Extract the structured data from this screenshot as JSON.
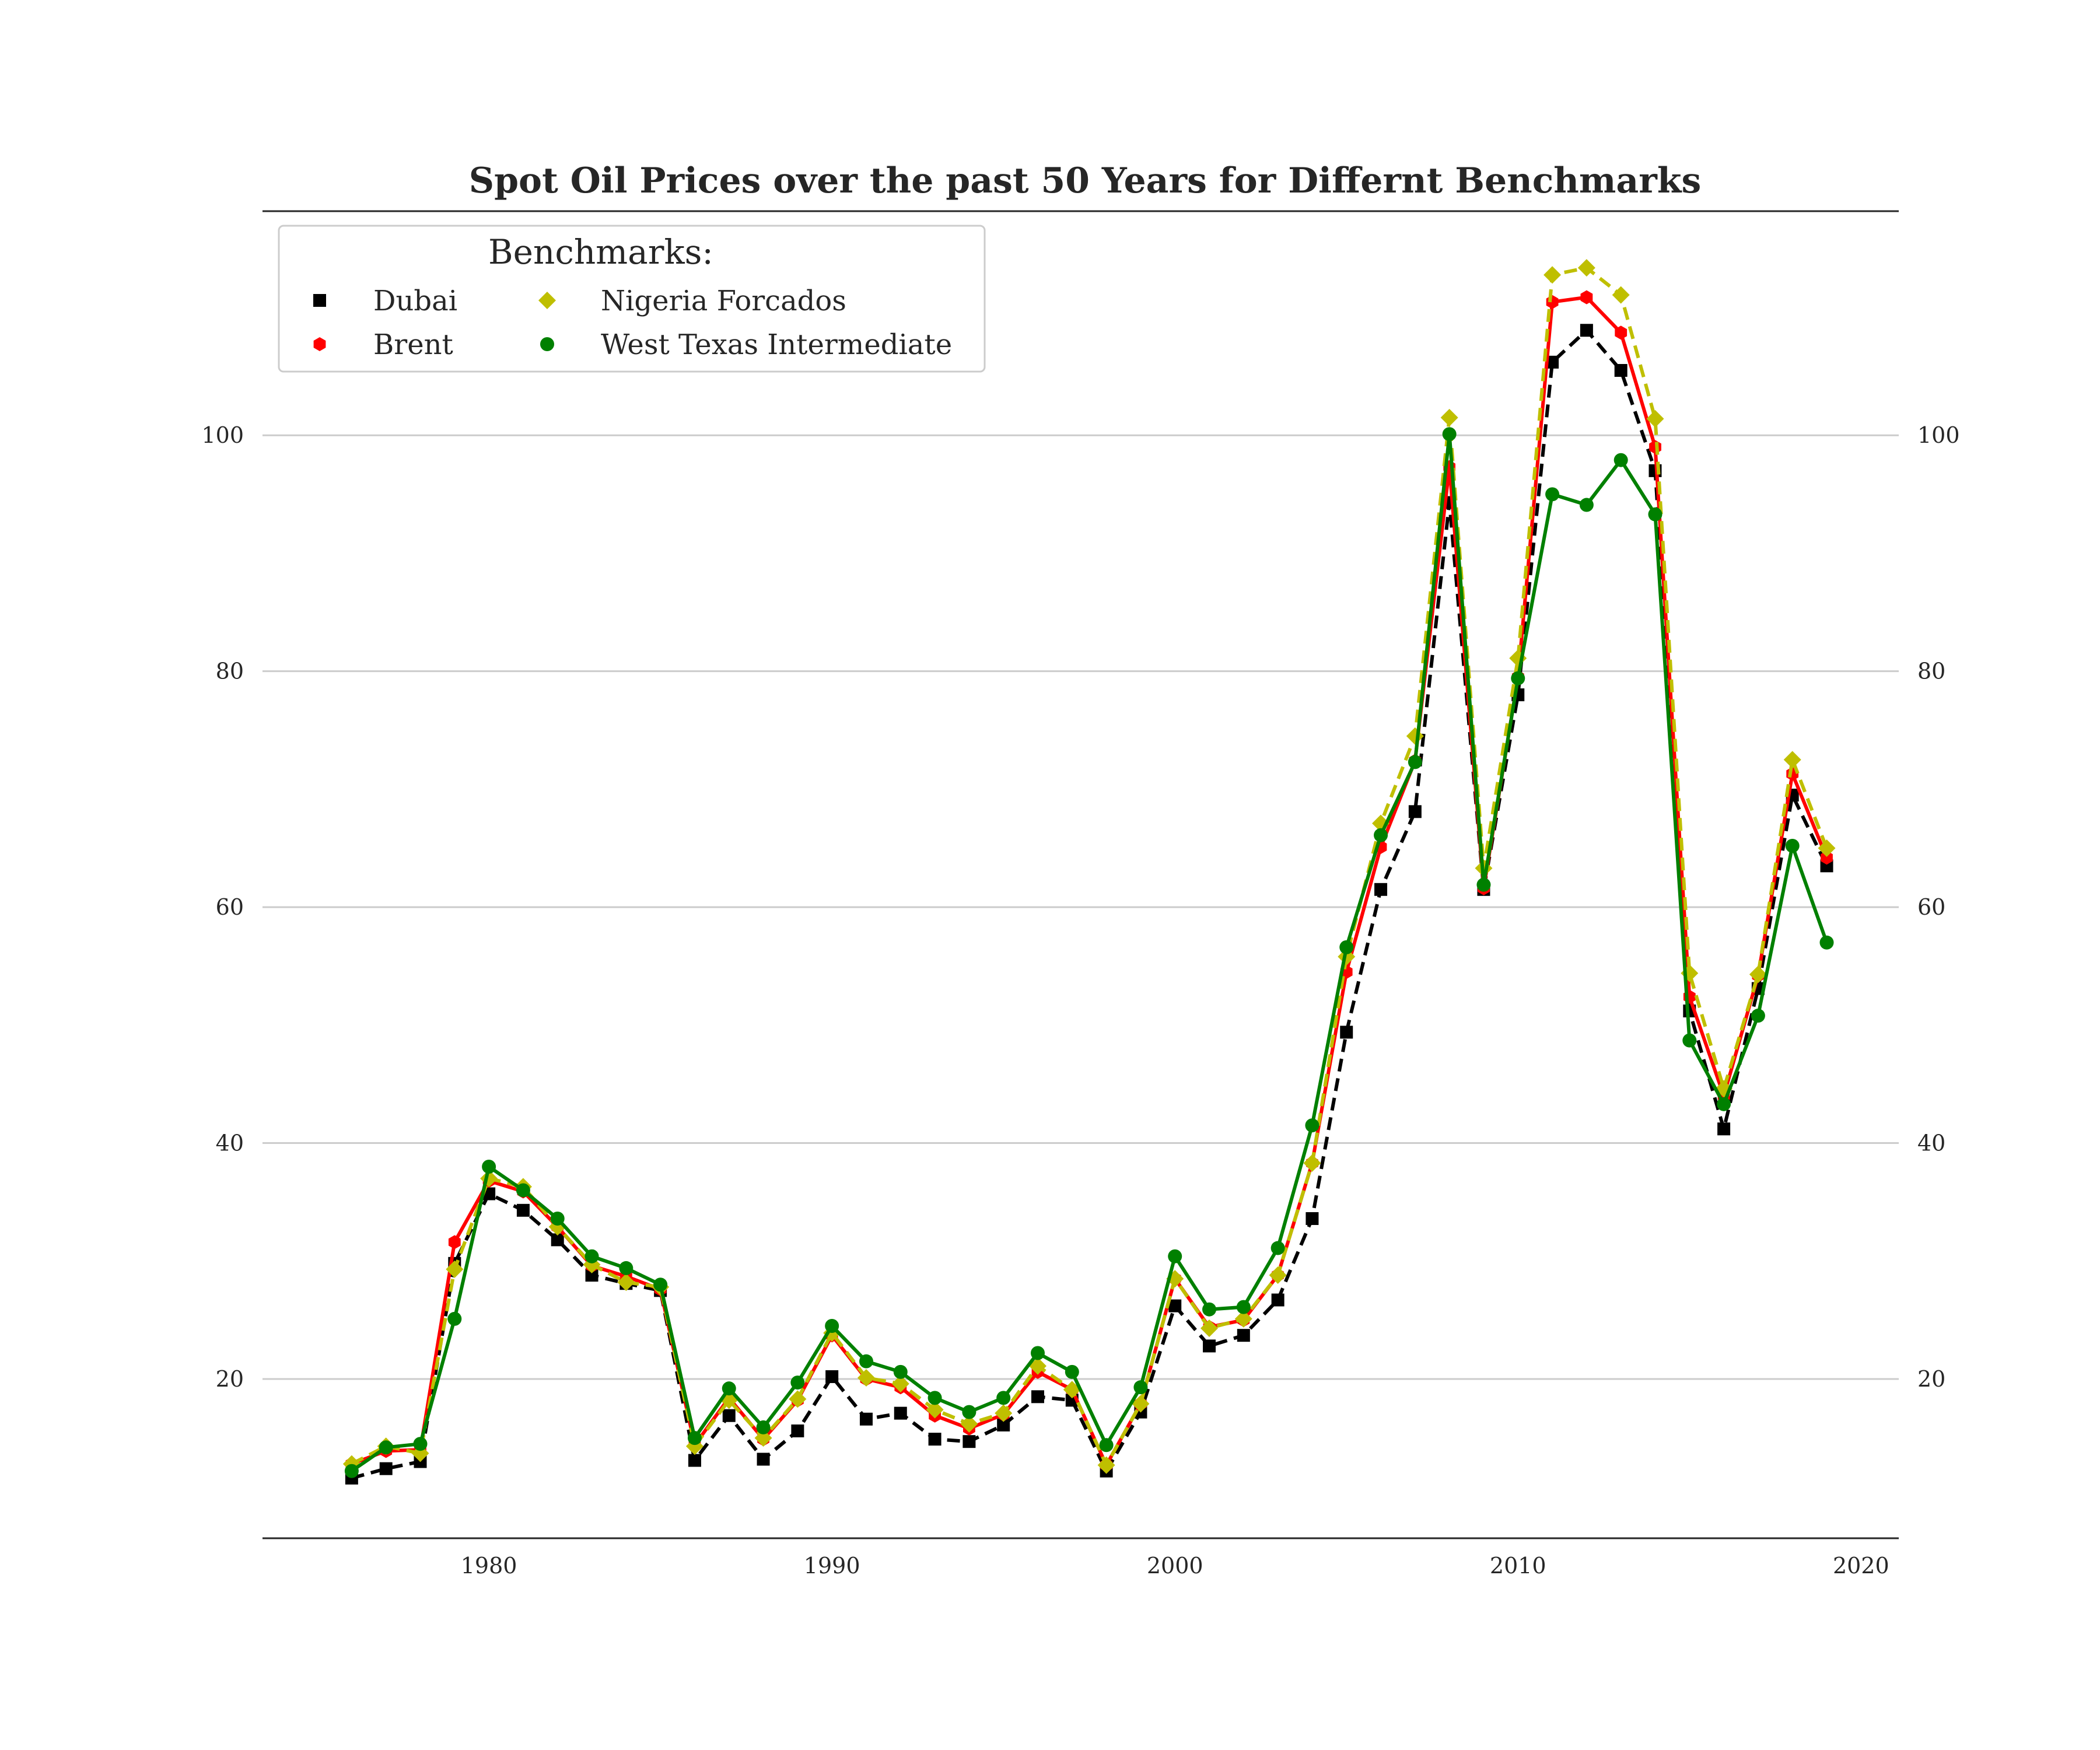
{
  "chart_data": {
    "type": "line",
    "title": "Spot Oil Prices over the past 50 Years for Differnt Benchmarks",
    "xlabel": "",
    "ylabel": "",
    "xlim": [
      1973.4,
      2021.1
    ],
    "ylim": [
      6.5,
      119
    ],
    "x_ticks": [
      1980,
      1990,
      2000,
      2010,
      2020
    ],
    "y_ticks": [
      20,
      40,
      60,
      80,
      100
    ],
    "grid": "horizontal",
    "right_axis_labels": true,
    "legend": {
      "title": "Benchmarks:",
      "placement": "top-left",
      "columns": 2,
      "entries": [
        "Dubai",
        "Nigeria Forcados",
        "Brent",
        "West Texas Intermediate"
      ]
    },
    "x": [
      1976,
      1977,
      1978,
      1979,
      1980,
      1981,
      1982,
      1983,
      1984,
      1985,
      1986,
      1987,
      1988,
      1989,
      1990,
      1991,
      1992,
      1993,
      1994,
      1995,
      1996,
      1997,
      1998,
      1999,
      2000,
      2001,
      2002,
      2003,
      2004,
      2005,
      2006,
      2007,
      2008,
      2009,
      2010,
      2011,
      2012,
      2013,
      2014,
      2015,
      2016,
      2017,
      2018,
      2019
    ],
    "series": [
      {
        "name": "Dubai",
        "color": "#000000",
        "marker": "square",
        "line_style": "dashed",
        "values": [
          11.6,
          12.4,
          13.0,
          29.8,
          35.7,
          34.3,
          31.8,
          28.8,
          28.1,
          27.5,
          13.1,
          16.9,
          13.2,
          15.6,
          20.2,
          16.6,
          17.1,
          14.9,
          14.7,
          16.1,
          18.5,
          18.2,
          12.2,
          17.2,
          26.2,
          22.8,
          23.7,
          26.7,
          33.6,
          49.4,
          61.5,
          68.1,
          94.3,
          61.5,
          78.0,
          106.2,
          108.9,
          105.5,
          97.0,
          51.2,
          41.2,
          53.1,
          69.5,
          63.5
        ]
      },
      {
        "name": "Brent",
        "color": "#ff0000",
        "marker": "hexagon",
        "line_style": "solid",
        "values": [
          12.8,
          13.9,
          14.0,
          31.6,
          36.8,
          35.9,
          32.9,
          29.6,
          28.7,
          27.6,
          14.4,
          18.4,
          14.9,
          18.2,
          23.7,
          20.0,
          19.3,
          16.9,
          15.8,
          17.0,
          20.6,
          19.1,
          12.7,
          17.9,
          28.5,
          24.4,
          25.0,
          28.8,
          38.3,
          54.5,
          65.1,
          72.4,
          97.3,
          61.6,
          79.5,
          111.3,
          111.7,
          108.7,
          99.0,
          52.4,
          44.0,
          54.2,
          71.3,
          64.2
        ]
      },
      {
        "name": "Nigeria Forcados",
        "color": "#bfbf00",
        "marker": "diamond",
        "line_style": "dashed",
        "values": [
          12.8,
          14.3,
          13.7,
          29.3,
          37.0,
          36.3,
          32.9,
          29.7,
          28.2,
          27.8,
          14.3,
          18.2,
          15.0,
          18.3,
          23.9,
          20.1,
          19.6,
          17.4,
          16.2,
          17.1,
          21.1,
          19.1,
          12.7,
          17.9,
          28.5,
          24.3,
          25.1,
          28.8,
          38.3,
          55.8,
          67.1,
          74.5,
          101.5,
          63.3,
          81.1,
          113.6,
          114.2,
          111.9,
          101.4,
          54.4,
          44.6,
          54.3,
          72.5,
          65.0
        ]
      },
      {
        "name": "West Texas Intermediate",
        "color": "#008000",
        "marker": "circle",
        "line_style": "solid",
        "values": [
          12.2,
          14.2,
          14.5,
          25.1,
          38.0,
          36.0,
          33.6,
          30.4,
          29.4,
          28.0,
          15.0,
          19.2,
          15.9,
          19.7,
          24.5,
          21.5,
          20.6,
          18.4,
          17.2,
          18.4,
          22.2,
          20.6,
          14.4,
          19.3,
          30.4,
          25.9,
          26.1,
          31.1,
          41.5,
          56.6,
          66.1,
          72.3,
          100.1,
          61.9,
          79.4,
          95.0,
          94.1,
          97.9,
          93.3,
          48.7,
          43.3,
          50.8,
          65.2,
          57.0
        ]
      }
    ]
  }
}
